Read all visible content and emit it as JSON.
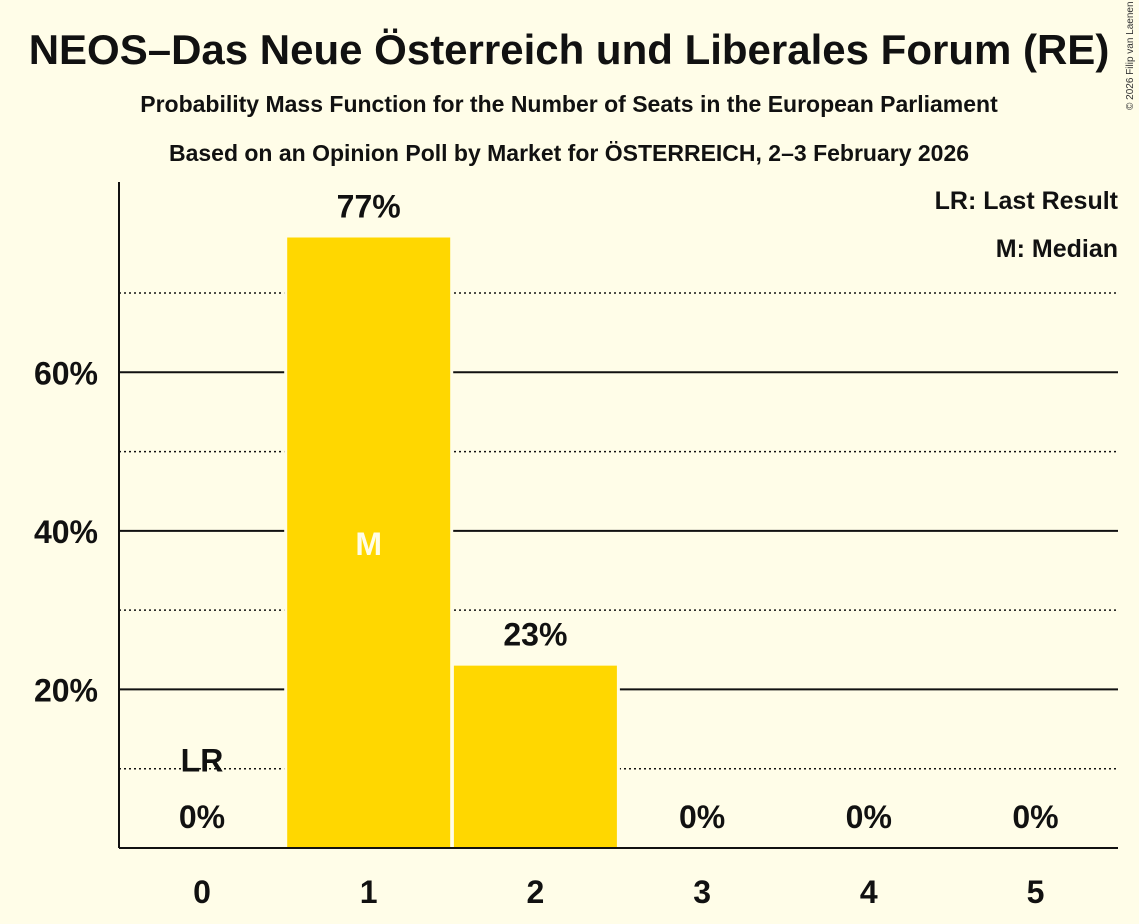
{
  "chart_data": {
    "type": "bar",
    "title": "NEOS–Das Neue Österreich und Liberales Forum (RE)",
    "subtitle": "Probability Mass Function for the Number of Seats in the European Parliament",
    "subtitle2": "Based on an Opinion Poll by Market for ÖSTERREICH, 2–3 February 2026",
    "copyright": "© 2026 Filip van Laenen",
    "categories": [
      "0",
      "1",
      "2",
      "3",
      "4",
      "5"
    ],
    "values": [
      0,
      77,
      23,
      0,
      0,
      0
    ],
    "value_labels": [
      "0%",
      "77%",
      "23%",
      "0%",
      "0%",
      "0%"
    ],
    "ylim": [
      0,
      84
    ],
    "yticks": [
      {
        "value": 20,
        "label": "20%"
      },
      {
        "value": 40,
        "label": "40%"
      },
      {
        "value": 60,
        "label": "60%"
      }
    ],
    "minor_gridlines": [
      10,
      30,
      50,
      70
    ],
    "median_seat": "1",
    "median_marker": "M",
    "last_result_seat": "0",
    "last_result_marker": "LR",
    "legend": [
      "LR: Last Result",
      "M: Median"
    ],
    "legend_position": "top-right",
    "colors": {
      "bar": "#FFD700",
      "background": "#FFFDE8",
      "axis": "#111111"
    }
  }
}
